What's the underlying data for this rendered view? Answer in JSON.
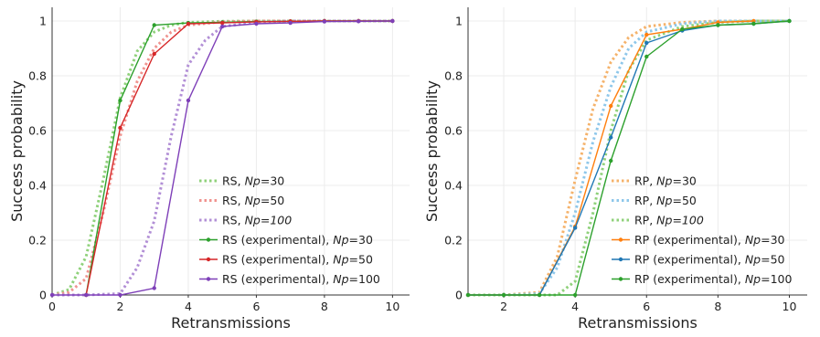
{
  "colors": {
    "green": "#2ca02c",
    "red": "#d62728",
    "purple": "#7e3fb8",
    "orange": "#ff7f0e",
    "blue": "#1f77b4",
    "green_light": "#8fd17a",
    "red_light": "#f0938f",
    "purple_light": "#b28fd6",
    "orange_light": "#f5b26a",
    "blue_light": "#8ec7ea",
    "grid": "#ececec",
    "axis": "#333333"
  },
  "chart_data": [
    {
      "type": "line",
      "xlabel": "Retransmissions",
      "ylabel": "Success probability",
      "xlim": [
        0,
        10.5
      ],
      "ylim": [
        0,
        1.05
      ],
      "xticks": [
        0,
        2,
        4,
        6,
        8,
        10
      ],
      "yticks": [
        0,
        0.2,
        0.4,
        0.6,
        0.8,
        1
      ],
      "ytick_labels": [
        "0",
        "0.2",
        "0.4",
        "0.6",
        "0.8",
        "1"
      ],
      "grid": true,
      "legend_position": "bottom-right",
      "series": [
        {
          "name_prefix": "RS, ",
          "name_var": "Np",
          "name_suffix": "=30",
          "style": "dotted",
          "color_key": "green_light",
          "x": [
            0,
            0.5,
            1,
            1.5,
            2,
            2.5,
            3,
            3.5,
            4,
            5,
            6,
            7,
            8,
            9,
            10
          ],
          "y": [
            0,
            0.02,
            0.14,
            0.42,
            0.72,
            0.89,
            0.96,
            0.985,
            0.995,
            0.999,
            1,
            1,
            1,
            1,
            1
          ]
        },
        {
          "name_prefix": "RS, ",
          "name_var": "Np",
          "name_suffix": "=50",
          "style": "dotted",
          "color_key": "red_light",
          "x": [
            0,
            0.5,
            1,
            1.5,
            2,
            2.5,
            3,
            3.5,
            4,
            5,
            6,
            7,
            8,
            9,
            10
          ],
          "y": [
            0,
            0.01,
            0.06,
            0.3,
            0.58,
            0.78,
            0.9,
            0.96,
            0.985,
            0.997,
            1,
            1,
            1,
            1,
            1
          ]
        },
        {
          "name_prefix": "RS, ",
          "name_var": "Np=100",
          "name_suffix": "",
          "style": "dotted",
          "color_key": "purple_light",
          "x": [
            0,
            1,
            2,
            2.5,
            3,
            3.5,
            4,
            4.5,
            5,
            6,
            7,
            8,
            9,
            10
          ],
          "y": [
            0,
            0,
            0.005,
            0.1,
            0.27,
            0.58,
            0.84,
            0.93,
            0.98,
            0.995,
            1,
            1,
            1,
            1
          ]
        },
        {
          "name_prefix": "RS (experimental), ",
          "name_var": "Np",
          "name_suffix": "=30",
          "style": "solid",
          "color_key": "green",
          "x": [
            1,
            2,
            3,
            4,
            5,
            6,
            7,
            8,
            9,
            10
          ],
          "y": [
            0,
            0.71,
            0.985,
            0.993,
            0.995,
            0.998,
            0.999,
            1,
            1,
            1
          ]
        },
        {
          "name_prefix": "RS (experimental), ",
          "name_var": "Np",
          "name_suffix": "=50",
          "style": "solid",
          "color_key": "red",
          "x": [
            1,
            2,
            3,
            4,
            5,
            6,
            7,
            8,
            9,
            10
          ],
          "y": [
            0,
            0.61,
            0.88,
            0.99,
            0.993,
            0.997,
            0.999,
            1,
            1,
            1
          ]
        },
        {
          "name_prefix": "RS (experimental), ",
          "name_var": "Np",
          "name_suffix": "=100",
          "style": "solid",
          "color_key": "purple",
          "x": [
            0,
            1,
            2,
            3,
            4,
            5,
            6,
            7,
            8,
            9,
            10
          ],
          "y": [
            0,
            0,
            0,
            0.025,
            0.71,
            0.98,
            0.99,
            0.993,
            0.998,
            0.999,
            1
          ]
        }
      ]
    },
    {
      "type": "line",
      "xlabel": "Retransmissions",
      "ylabel": "Success probability",
      "xlim": [
        1,
        10.5
      ],
      "ylim": [
        0,
        1.05
      ],
      "xticks": [
        2,
        4,
        6,
        8,
        10
      ],
      "yticks": [
        0,
        0.2,
        0.4,
        0.6,
        0.8,
        1
      ],
      "ytick_labels": [
        "0",
        "0.2",
        "0.4",
        "0.6",
        "0.8",
        "1"
      ],
      "grid": true,
      "legend_position": "bottom-right",
      "series": [
        {
          "name_prefix": "RP, ",
          "name_var": "Np",
          "name_suffix": "=30",
          "style": "dotted",
          "color_key": "orange_light",
          "x": [
            1,
            2,
            3,
            3.5,
            4,
            4.5,
            5,
            5.5,
            6,
            7,
            8,
            9,
            10
          ],
          "y": [
            0,
            0,
            0.01,
            0.14,
            0.42,
            0.68,
            0.85,
            0.94,
            0.98,
            0.995,
            1,
            1,
            1
          ]
        },
        {
          "name_prefix": "RP, ",
          "name_var": "Np",
          "name_suffix": "=50",
          "style": "dotted",
          "color_key": "blue_light",
          "x": [
            1,
            2,
            3,
            3.5,
            4,
            4.5,
            5,
            5.5,
            6,
            7,
            8,
            9,
            10
          ],
          "y": [
            0,
            0,
            0.005,
            0.1,
            0.3,
            0.56,
            0.76,
            0.9,
            0.96,
            0.99,
            1,
            1,
            1
          ]
        },
        {
          "name_prefix": "RP, ",
          "name_var": "Np=100",
          "name_suffix": "",
          "style": "dotted",
          "color_key": "green_light",
          "x": [
            1,
            2,
            3,
            3.5,
            4,
            4.5,
            5,
            5.5,
            6,
            7,
            8,
            9,
            10
          ],
          "y": [
            0,
            0,
            0,
            0.0,
            0.05,
            0.3,
            0.6,
            0.82,
            0.93,
            0.98,
            0.995,
            1,
            1
          ]
        },
        {
          "name_prefix": "RP (experimental), ",
          "name_var": "Np",
          "name_suffix": "=30",
          "style": "solid",
          "color_key": "orange",
          "x": [
            1,
            2,
            3,
            4,
            5,
            6,
            7,
            8,
            9
          ],
          "y": [
            0,
            0,
            0,
            0.25,
            0.69,
            0.95,
            0.97,
            0.995,
            1
          ]
        },
        {
          "name_prefix": "RP (experimental), ",
          "name_var": "Np",
          "name_suffix": "=50",
          "style": "solid",
          "color_key": "blue",
          "x": [
            1,
            2,
            3,
            4,
            5,
            6,
            7,
            8,
            9,
            10
          ],
          "y": [
            0,
            0,
            0,
            0.245,
            0.575,
            0.92,
            0.965,
            0.985,
            0.99,
            1
          ]
        },
        {
          "name_prefix": "RP (experimental), ",
          "name_var": "Np",
          "name_suffix": "=100",
          "style": "solid",
          "color_key": "green",
          "x": [
            1,
            2,
            3,
            4,
            5,
            6,
            7,
            8,
            9,
            10
          ],
          "y": [
            0,
            0,
            0,
            0,
            0.49,
            0.87,
            0.97,
            0.985,
            0.99,
            1
          ]
        }
      ]
    }
  ]
}
